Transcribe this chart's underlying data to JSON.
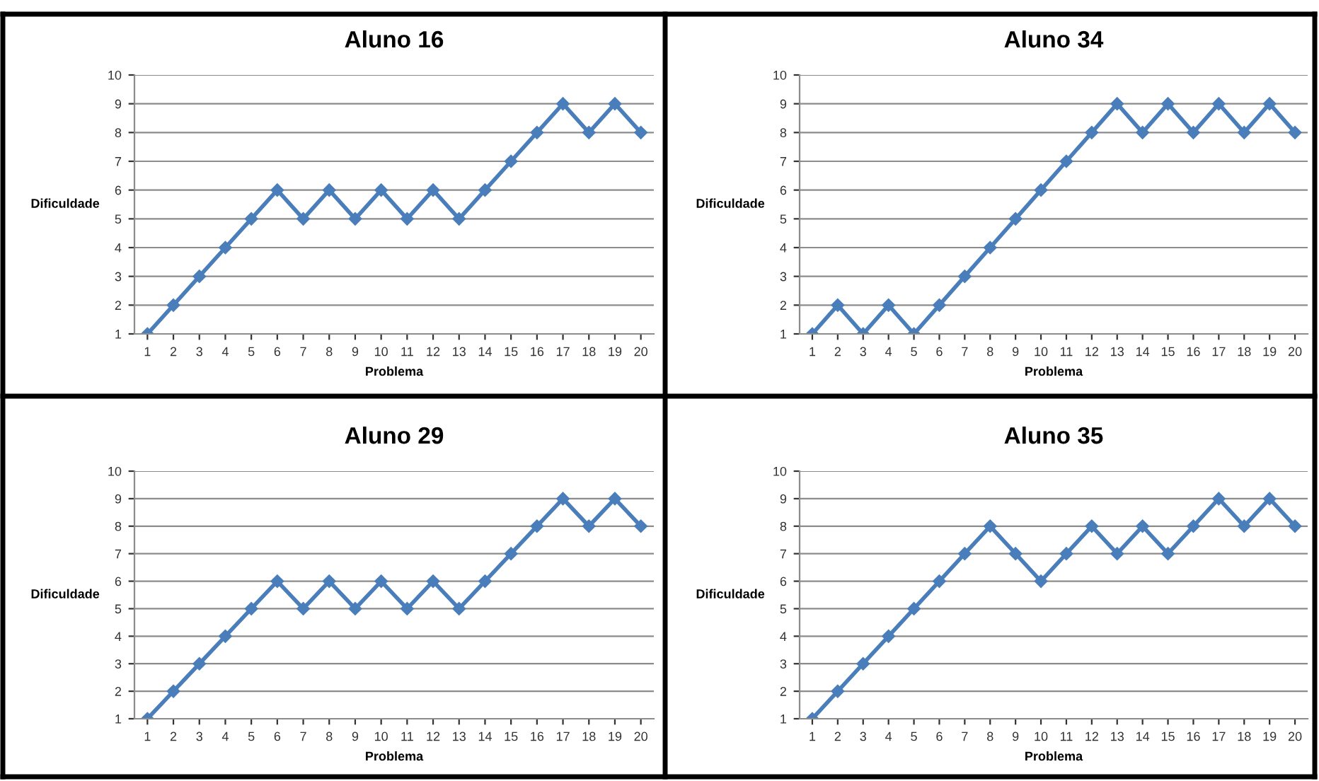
{
  "chart_data": [
    {
      "type": "line",
      "title": "Aluno 16",
      "xlabel": "Problema",
      "ylabel": "Dificuldade",
      "categories": [
        "1",
        "2",
        "3",
        "4",
        "5",
        "6",
        "7",
        "8",
        "9",
        "10",
        "11",
        "12",
        "13",
        "14",
        "15",
        "16",
        "17",
        "18",
        "19",
        "20"
      ],
      "series": [
        {
          "color": "#4a7ebb",
          "values": [
            1,
            2,
            3,
            4,
            5,
            6,
            5,
            6,
            5,
            6,
            5,
            6,
            5,
            6,
            7,
            8,
            9,
            8,
            9,
            8
          ]
        }
      ],
      "ylim": [
        1,
        10
      ],
      "yticks": [
        1,
        2,
        3,
        4,
        5,
        6,
        7,
        8,
        9,
        10
      ],
      "grid": "y",
      "marker": "diamond",
      "line_style": "solid"
    },
    {
      "type": "line",
      "title": "Aluno 34",
      "xlabel": "Problema",
      "ylabel": "Dificuldade",
      "categories": [
        "1",
        "2",
        "3",
        "4",
        "5",
        "6",
        "7",
        "8",
        "9",
        "10",
        "11",
        "12",
        "13",
        "14",
        "15",
        "16",
        "17",
        "18",
        "19",
        "20"
      ],
      "series": [
        {
          "color": "#4a7ebb",
          "values": [
            1,
            2,
            1,
            2,
            1,
            2,
            3,
            4,
            5,
            6,
            7,
            8,
            9,
            8,
            9,
            8,
            9,
            8,
            9,
            8
          ]
        }
      ],
      "ylim": [
        1,
        10
      ],
      "yticks": [
        1,
        2,
        3,
        4,
        5,
        6,
        7,
        8,
        9,
        10
      ],
      "grid": "y",
      "marker": "diamond",
      "line_style": "solid"
    },
    {
      "type": "line",
      "title": "Aluno 29",
      "xlabel": "Problema",
      "ylabel": "Dificuldade",
      "categories": [
        "1",
        "2",
        "3",
        "4",
        "5",
        "6",
        "7",
        "8",
        "9",
        "10",
        "11",
        "12",
        "13",
        "14",
        "15",
        "16",
        "17",
        "18",
        "19",
        "20"
      ],
      "series": [
        {
          "color": "#4a7ebb",
          "values": [
            1,
            2,
            3,
            4,
            5,
            6,
            5,
            6,
            5,
            6,
            5,
            6,
            5,
            6,
            7,
            8,
            9,
            8,
            9,
            8
          ]
        }
      ],
      "ylim": [
        1,
        10
      ],
      "yticks": [
        1,
        2,
        3,
        4,
        5,
        6,
        7,
        8,
        9,
        10
      ],
      "grid": "y",
      "marker": "diamond",
      "line_style": "solid"
    },
    {
      "type": "line",
      "title": "Aluno 35",
      "xlabel": "Problema",
      "ylabel": "Dificuldade",
      "categories": [
        "1",
        "2",
        "3",
        "4",
        "5",
        "6",
        "7",
        "8",
        "9",
        "10",
        "11",
        "12",
        "13",
        "14",
        "15",
        "16",
        "17",
        "18",
        "19",
        "20"
      ],
      "series": [
        {
          "color": "#4a7ebb",
          "values": [
            1,
            2,
            3,
            4,
            5,
            6,
            7,
            8,
            7,
            6,
            7,
            8,
            7,
            8,
            7,
            8,
            9,
            8,
            9,
            8
          ]
        }
      ],
      "ylim": [
        1,
        10
      ],
      "yticks": [
        1,
        2,
        3,
        4,
        5,
        6,
        7,
        8,
        9,
        10
      ],
      "grid": "y",
      "marker": "diamond",
      "line_style": "solid"
    }
  ]
}
